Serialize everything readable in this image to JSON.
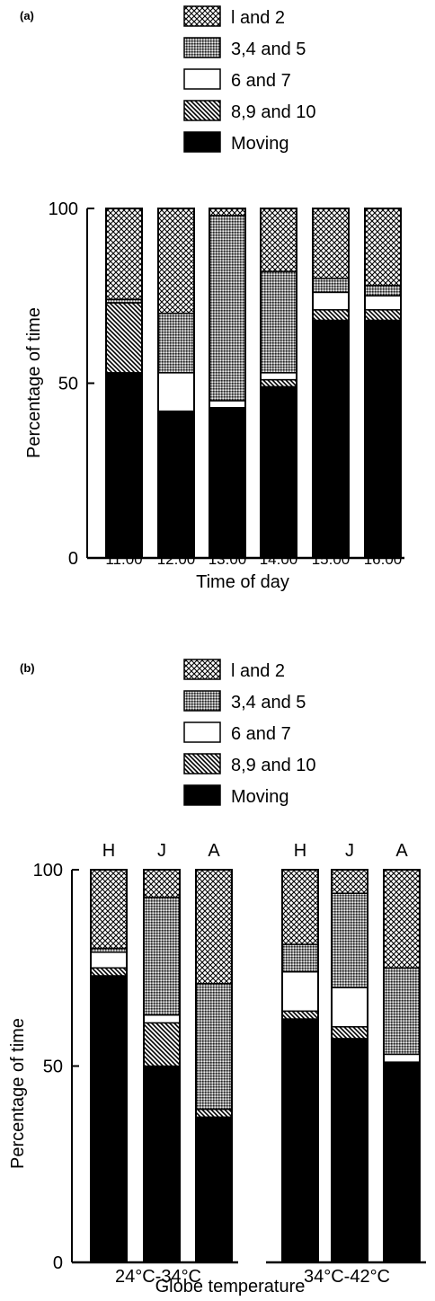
{
  "panels": {
    "a": {
      "label": "(a)"
    },
    "b": {
      "label": "(b)"
    }
  },
  "legend": [
    {
      "key": "s12",
      "label": "l and 2",
      "pattern": "crosshatch"
    },
    {
      "key": "s345",
      "label": "3,4 and 5",
      "pattern": "stipple"
    },
    {
      "key": "s67",
      "label": "6 and 7",
      "pattern": "white"
    },
    {
      "key": "s8910",
      "label": "8,9 and 10",
      "pattern": "diagonal"
    },
    {
      "key": "moving",
      "label": "Moving",
      "pattern": "solid"
    }
  ],
  "colors": {
    "ink": "#000000",
    "paper": "#ffffff"
  },
  "chart_data": [
    {
      "type": "bar",
      "stacked": true,
      "ylabel": "Percentage of time",
      "xlabel": "Time of day",
      "ylim": [
        0,
        100
      ],
      "yticks": [
        "0",
        "50",
        "100"
      ],
      "categories": [
        "11:00",
        "12:00",
        "13:00",
        "14:00",
        "15:00",
        "16:00"
      ],
      "series": [
        {
          "name": "Moving",
          "values": [
            53,
            42,
            43,
            49,
            68,
            68
          ]
        },
        {
          "name": "8,9 and 10",
          "values": [
            20,
            0,
            0,
            2,
            3,
            3
          ]
        },
        {
          "name": "6 and 7",
          "values": [
            0,
            11,
            2,
            2,
            5,
            4
          ]
        },
        {
          "name": "3,4 and 5",
          "values": [
            1,
            17,
            53,
            29,
            4,
            3
          ]
        },
        {
          "name": "l and 2",
          "values": [
            26,
            30,
            2,
            18,
            20,
            22
          ]
        }
      ]
    },
    {
      "type": "bar",
      "stacked": true,
      "ylabel": "Percentage of time",
      "xlabel": "Globe temperature",
      "ylim": [
        0,
        100
      ],
      "yticks": [
        "0",
        "50",
        "100"
      ],
      "groups": [
        "24°C-34°C",
        "34°C-42°C"
      ],
      "categories": [
        "H",
        "J",
        "A",
        "H",
        "J",
        "A"
      ],
      "series": [
        {
          "name": "Moving",
          "values": [
            73,
            50,
            37,
            62,
            57,
            51
          ]
        },
        {
          "name": "8,9 and 10",
          "values": [
            2,
            11,
            2,
            2,
            3,
            0
          ]
        },
        {
          "name": "6 and 7",
          "values": [
            4,
            2,
            0,
            10,
            10,
            2
          ]
        },
        {
          "name": "3,4 and 5",
          "values": [
            1,
            30,
            32,
            7,
            24,
            22
          ]
        },
        {
          "name": "l and 2",
          "values": [
            20,
            7,
            29,
            19,
            6,
            25
          ]
        }
      ]
    }
  ]
}
